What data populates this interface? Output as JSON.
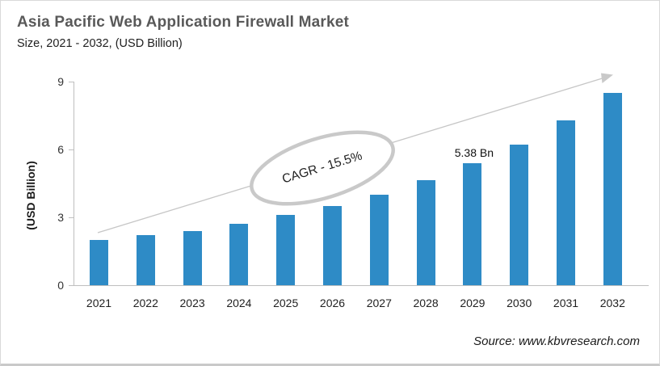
{
  "header": {
    "title": "Asia Pacific Web Application Firewall Market",
    "subtitle": "Size, 2021 - 2032, (USD Billion)"
  },
  "chart_data": {
    "type": "bar",
    "title": "Asia Pacific Web Application Firewall Market",
    "subtitle": "Size, 2021 - 2032, (USD Billion)",
    "categories": [
      "2021",
      "2022",
      "2023",
      "2024",
      "2025",
      "2026",
      "2027",
      "2028",
      "2029",
      "2030",
      "2031",
      "2032"
    ],
    "values": [
      2.0,
      2.2,
      2.4,
      2.7,
      3.1,
      3.5,
      4.0,
      4.65,
      5.38,
      6.2,
      7.3,
      8.5
    ],
    "xlabel": "",
    "ylabel": "(USD Billion)",
    "y_ticks": [
      0,
      3,
      6,
      9
    ],
    "ylim": [
      0,
      9
    ],
    "grid": false,
    "legend": "none",
    "bar_color": "#2E8BC6",
    "axis_color": "#BFBFBF",
    "annotations": {
      "cagr_label": "CAGR - 15.5%",
      "data_label": {
        "category": "2029",
        "text": "5.38 Bn"
      },
      "trend_arrow": "up-right"
    }
  },
  "footer": {
    "source": "Source: www.kbvresearch.com"
  }
}
